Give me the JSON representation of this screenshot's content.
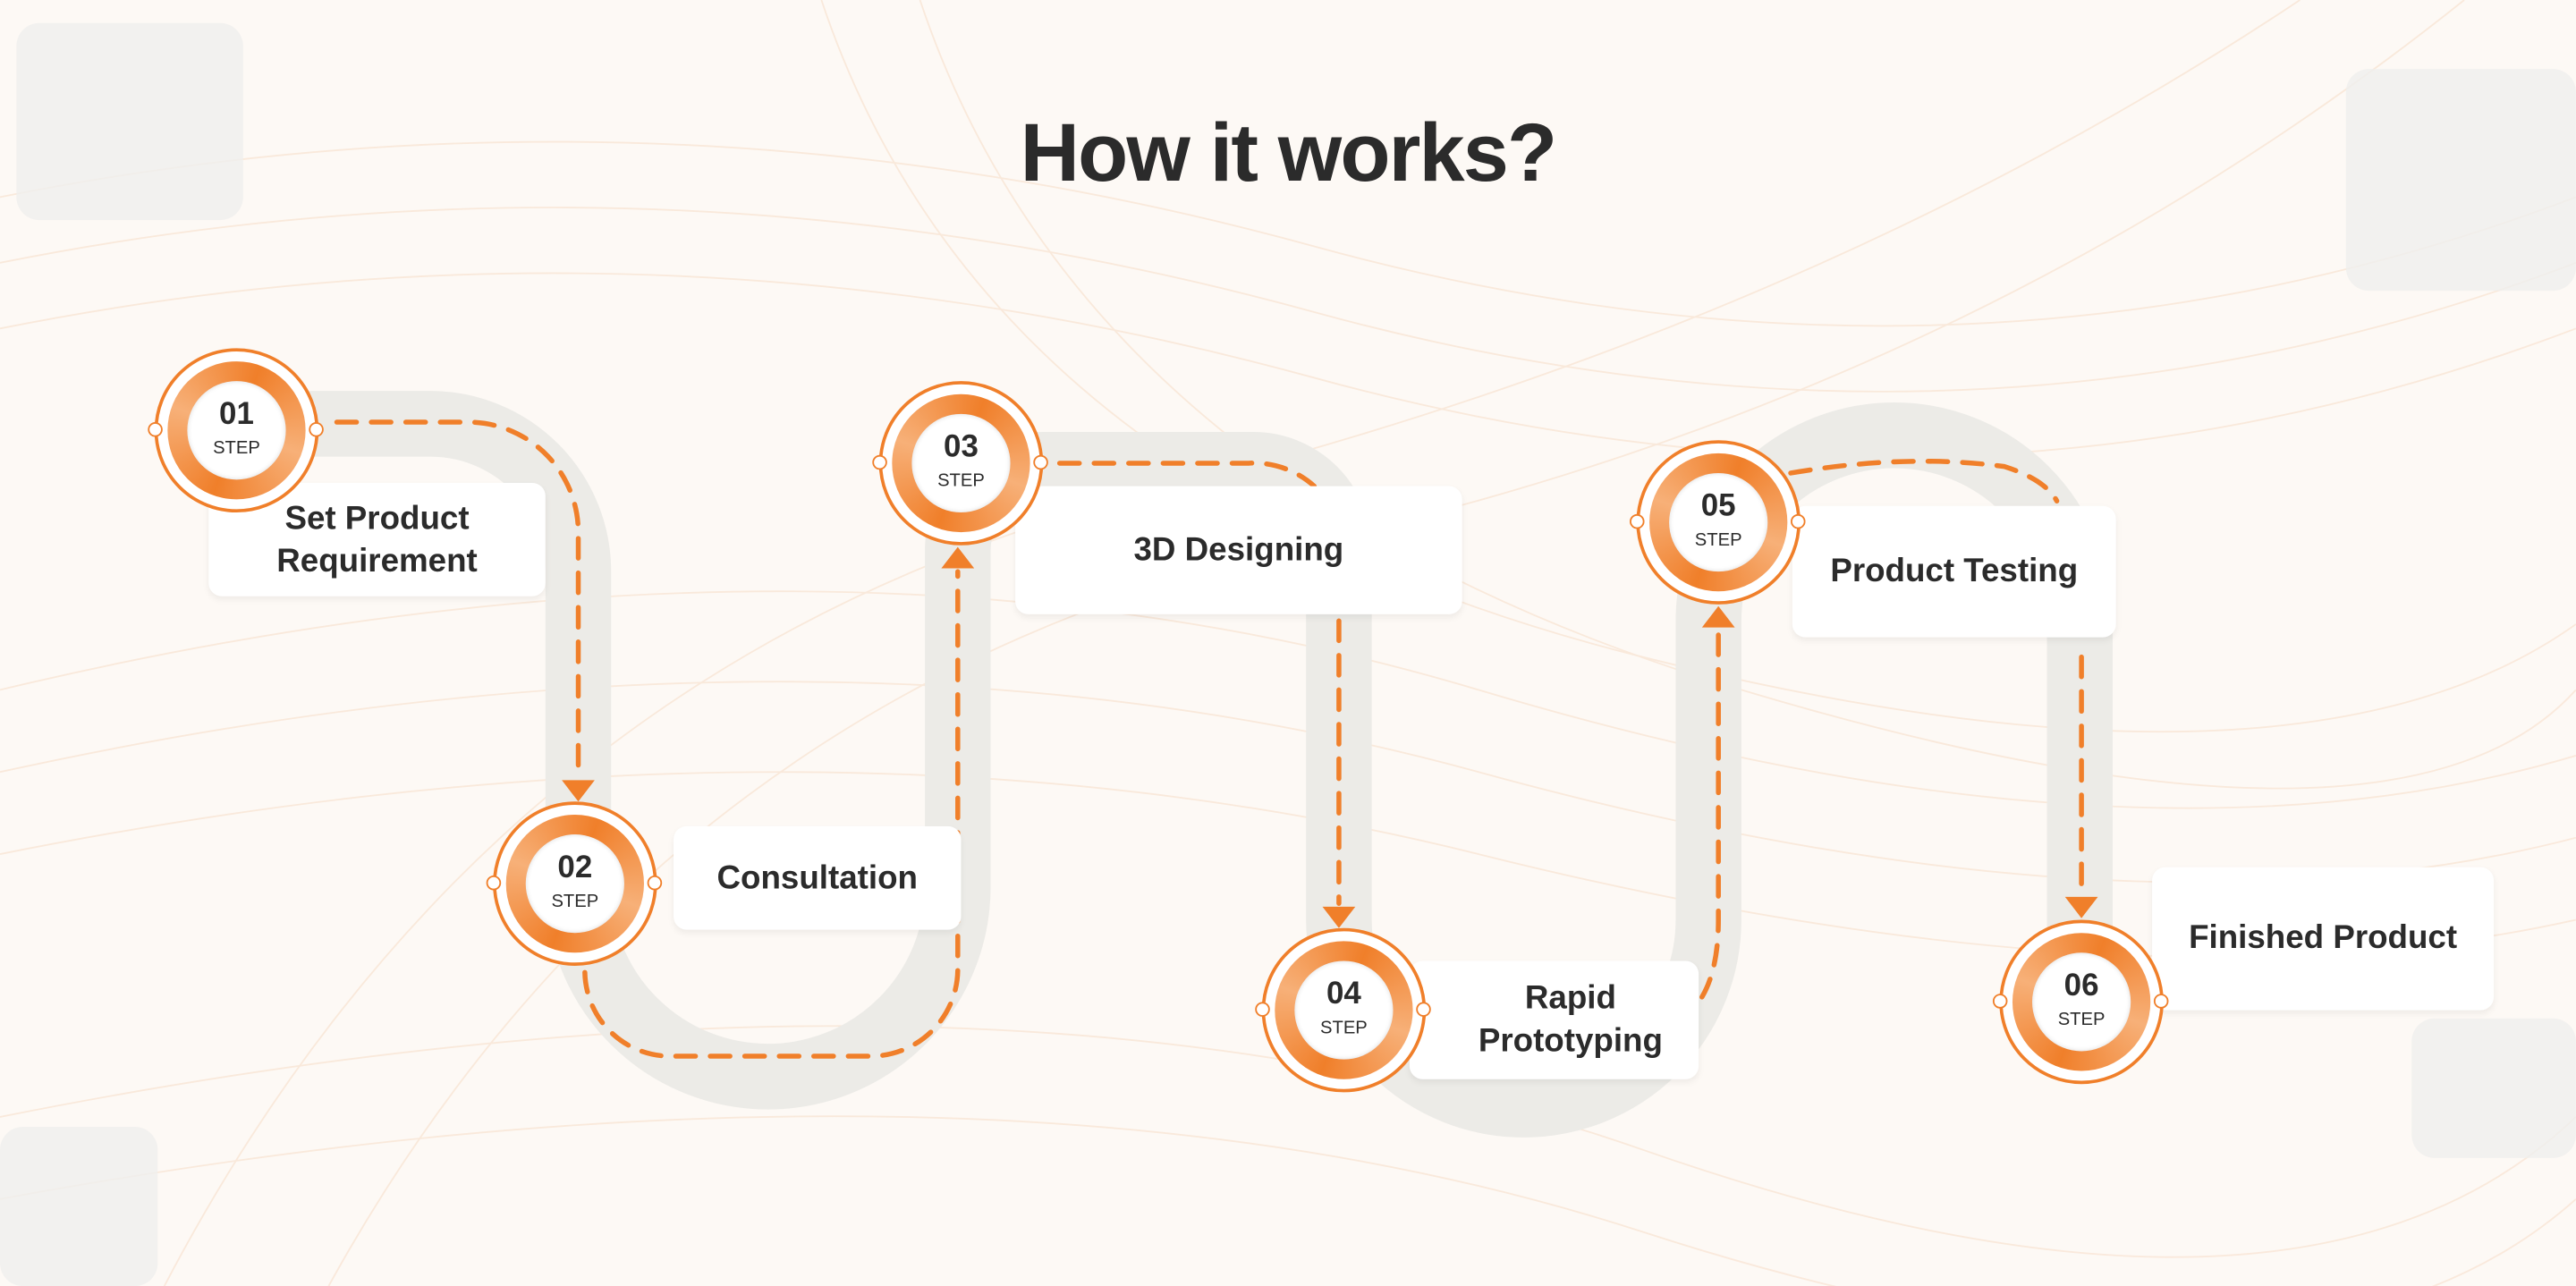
{
  "heading": "How it works?",
  "colors": {
    "accent": "#f07f2a",
    "accent_light": "#f7b078",
    "track": "#ecebe7",
    "text": "#2b2b2b",
    "background": "#fdf9f5"
  },
  "steps": [
    {
      "number": "01",
      "label": "STEP",
      "title": "Set Product\nRequirement"
    },
    {
      "number": "02",
      "label": "STEP",
      "title": "Consultation"
    },
    {
      "number": "03",
      "label": "STEP",
      "title": "3D Designing"
    },
    {
      "number": "04",
      "label": "STEP",
      "title": "Rapid\nPrototyping"
    },
    {
      "number": "05",
      "label": "STEP",
      "title": "Product Testing"
    },
    {
      "number": "06",
      "label": "STEP",
      "title": "Finished Product"
    }
  ]
}
